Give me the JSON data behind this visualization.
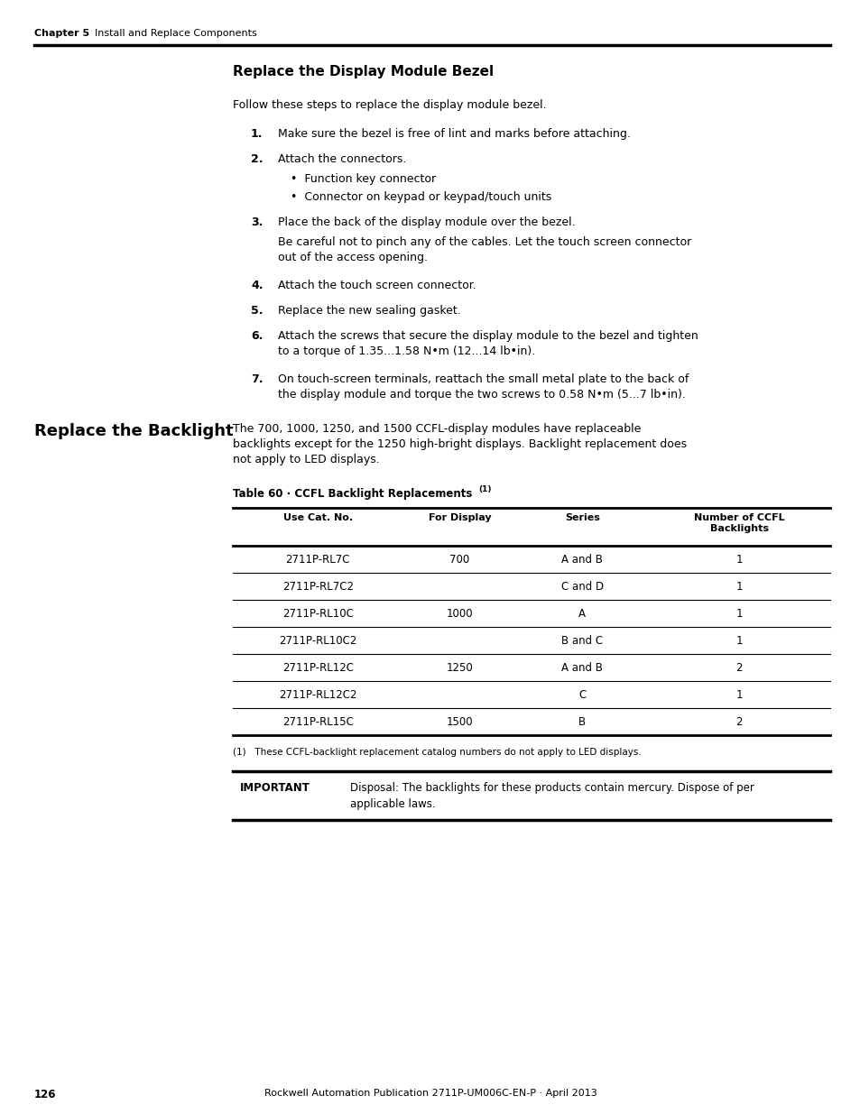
{
  "page_number": "126",
  "footer_text": "Rockwell Automation Publication 2711P-UM006C-EN-P · April 2013",
  "header_chapter": "Chapter 5",
  "header_section": "Install and Replace Components",
  "section1_title": "Replace the Display Module Bezel",
  "section1_intro": "Follow these steps to replace the display module bezel.",
  "step1": "Make sure the bezel is free of lint and marks before attaching.",
  "step2": "Attach the connectors.",
  "bullet1": "Function key connector",
  "bullet2": "Connector on keypad or keypad/touch units",
  "step3": "Place the back of the display module over the bezel.",
  "step3_note": "Be careful not to pinch any of the cables. Let the touch screen connector\nout of the access opening.",
  "step4": "Attach the touch screen connector.",
  "step5": "Replace the new sealing gasket.",
  "step6": "Attach the screws that secure the display module to the bezel and tighten\nto a torque of 1.35...1.58 N•m (12...14 lb•in).",
  "step7": "On touch-screen terminals, reattach the small metal plate to the back of\nthe display module and torque the two screws to 0.58 N•m (5...7 lb•in).",
  "section2_title": "Replace the Backlight",
  "section2_intro": "The 700, 1000, 1250, and 1500 CCFL-display modules have replaceable\nbacklights except for the 1250 high-bright displays. Backlight replacement does\nnot apply to LED displays.",
  "table_title": "Table 60 · CCFL Backlight Replacements",
  "table_footnote_marker": "(1)",
  "table_headers": [
    "Use Cat. No.",
    "For Display",
    "Series",
    "Number of CCFL\nBacklights"
  ],
  "table_rows": [
    [
      "2711P-RL7C",
      "700",
      "A and B",
      "1"
    ],
    [
      "2711P-RL7C2",
      "",
      "C and D",
      "1"
    ],
    [
      "2711P-RL10C",
      "1000",
      "A",
      "1"
    ],
    [
      "2711P-RL10C2",
      "",
      "B and C",
      "1"
    ],
    [
      "2711P-RL12C",
      "1250",
      "A and B",
      "2"
    ],
    [
      "2711P-RL12C2",
      "",
      "C",
      "1"
    ],
    [
      "2711P-RL15C",
      "1500",
      "B",
      "2"
    ]
  ],
  "table_footnote": "(1)   These CCFL-backlight replacement catalog numbers do not apply to LED displays.",
  "important_label": "IMPORTANT",
  "important_text": "Disposal: The backlights for these products contain mercury. Dispose of per\napplicable laws.",
  "bg_color": "#ffffff"
}
